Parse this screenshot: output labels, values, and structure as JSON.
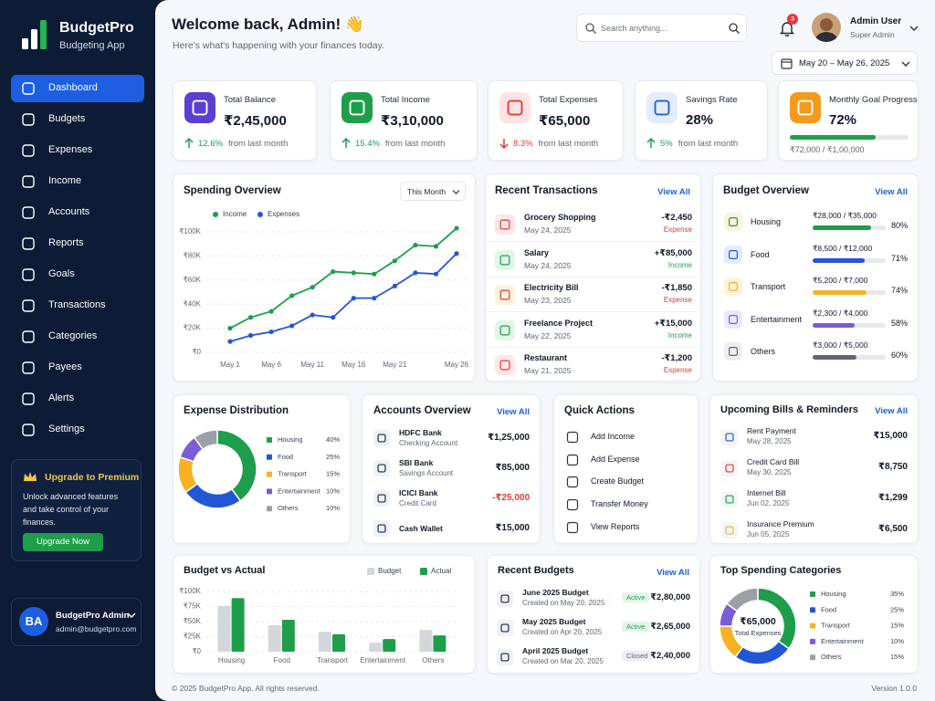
{
  "sidebar": {
    "brand": "BudgetPro",
    "tagline": "Budgeting App",
    "nav": [
      "Dashboard",
      "Budgets",
      "Expenses",
      "Income",
      "Accounts",
      "Reports",
      "Goals",
      "Transactions",
      "Categories",
      "Payees",
      "Alerts",
      "Settings"
    ],
    "active": 0,
    "premium": {
      "title": "Upgrade to Premium",
      "text": "Unlock advanced features and take control of your finances.",
      "button": "Upgrade Now"
    },
    "user": {
      "initials": "BA",
      "name": "BudgetPro Admin",
      "email": "admin@budgetpro.com"
    }
  },
  "header": {
    "title": "Welcome back, Admin! 👋",
    "subtitle": "Here's what's happening with your finances today.",
    "search_placeholder": "Search anything...",
    "notifications": "3",
    "user_name": "Admin User",
    "user_role": "Super Admin",
    "date_range": "May 20 – May 26, 2025"
  },
  "stats": [
    {
      "title": "Total Balance",
      "value": "₹2,45,000",
      "change": "12.6%",
      "direction": "up",
      "note": "from last month",
      "icon_color": "#5b3fd0",
      "icon_fg": "#ffffff"
    },
    {
      "title": "Total Income",
      "value": "₹3,10,000",
      "change": "15.4%",
      "direction": "up",
      "note": "from last month",
      "icon_color": "#1e9e4a",
      "icon_fg": "#ffffff"
    },
    {
      "title": "Total Expenses",
      "value": "₹65,000",
      "change": "8.3%",
      "direction": "down",
      "note": "from last month",
      "icon_color": "#fde3e3",
      "icon_fg": "#e53935"
    },
    {
      "title": "Savings Rate",
      "value": "28%",
      "change": "5%",
      "direction": "up",
      "note": "from last month",
      "icon_color": "#e3ecfd",
      "icon_fg": "#1d5fe0"
    },
    {
      "title": "Monthly Goal Progress",
      "value": "72%",
      "progress": 72,
      "detail": "₹72,000 / ₹1,00,000",
      "icon_color": "#f59a1b",
      "icon_fg": "#ffffff"
    }
  ],
  "transactions": {
    "title": "Recent Transactions",
    "link": "View All",
    "items": [
      {
        "name": "Grocery Shopping",
        "date": "May 24, 2025",
        "amount": "-₹2,450",
        "type": "Expense",
        "color": "#e53935",
        "icon_color": "#fde7e7"
      },
      {
        "name": "Salary",
        "date": "May 24, 2025",
        "amount": "+₹85,000",
        "type": "Income",
        "color": "#1e9e4a",
        "icon_color": "#e2f5e8"
      },
      {
        "name": "Electricity Bill",
        "date": "May 23, 2025",
        "amount": "-₹1,850",
        "type": "Expense",
        "color": "#e53935",
        "icon_color": "#fdf3dc"
      },
      {
        "name": "Freelance Project",
        "date": "May 22, 2025",
        "amount": "+₹15,000",
        "type": "Income",
        "color": "#1e9e4a",
        "icon_color": "#e2f5e8"
      },
      {
        "name": "Restaurant",
        "date": "May 21, 2025",
        "amount": "-₹1,200",
        "type": "Expense",
        "color": "#e53935",
        "icon_color": "#fde7e7"
      }
    ]
  },
  "budget_overview": {
    "title": "Budget Overview",
    "link": "View All",
    "items": [
      {
        "name": "Housing",
        "amount": "₹28,000 / ₹35,000",
        "percent": 80,
        "percent_label": "80%",
        "color": "#1e9e4a",
        "icon_color": "#fdf3dc"
      },
      {
        "name": "Food",
        "amount": "₹8,500 / ₹12,000",
        "percent": 71,
        "percent_label": "71%",
        "color": "#2356d6",
        "icon_color": "#e3ecfd"
      },
      {
        "name": "Transport",
        "amount": "₹5,200 / ₹7,000",
        "percent": 74,
        "percent_label": "74%",
        "color": "#f5b323",
        "icon_color": "#fdf3dc"
      },
      {
        "name": "Entertainment",
        "amount": "₹2,300 / ₹4,000",
        "percent": 58,
        "percent_label": "58%",
        "color": "#7b5bd6",
        "icon_color": "#ede7fb"
      },
      {
        "name": "Others",
        "amount": "₹3,000 / ₹5,000",
        "percent": 60,
        "percent_label": "60%",
        "color": "#5f6673",
        "icon_color": "#eceef2"
      }
    ]
  },
  "accounts": {
    "title": "Accounts Overview",
    "link": "View All",
    "items": [
      {
        "name": "HDFC Bank",
        "kind": "Checking Account",
        "amount": "₹1,25,000",
        "color": "#111827"
      },
      {
        "name": "SBI Bank",
        "kind": "Savings Account",
        "amount": "₹85,000",
        "color": "#111827"
      },
      {
        "name": "ICICI Bank",
        "kind": "Credit Card",
        "amount": "-₹25,000",
        "color": "#e53935"
      },
      {
        "name": "Cash Wallet",
        "amount": "₹15,000",
        "color": "#111827"
      }
    ]
  },
  "quick_actions": {
    "title": "Quick Actions",
    "items": [
      "Add Income",
      "Add Expense",
      "Create Budget",
      "Transfer Money",
      "View Reports"
    ]
  },
  "bills": {
    "title": "Upcoming Bills & Reminders",
    "link": "View All",
    "items": [
      {
        "name": "Rent Payment",
        "date": "May 28, 2025",
        "amount": "₹15,000",
        "icon_color": "#2356d6"
      },
      {
        "name": "Credit Card Bill",
        "date": "May 30, 2025",
        "amount": "₹8,750",
        "icon_color": "#e53935"
      },
      {
        "name": "Internet Bill",
        "date": "Jun 02, 2025",
        "amount": "₹1,299",
        "icon_color": "#1e9e4a"
      },
      {
        "name": "Insurance Premium",
        "date": "Jun 05, 2025",
        "amount": "₹6,500",
        "icon_color": "#f5b323"
      }
    ]
  },
  "recent_budgets": {
    "title": "Recent Budgets",
    "link": "View All",
    "items": [
      {
        "name": "June 2025 Budget",
        "created": "Created on May 20, 2025",
        "status": "Active",
        "status_color": "#1e9e4a",
        "status_bg": "#e2f5e8",
        "amount": "₹2,80,000"
      },
      {
        "name": "May 2025 Budget",
        "created": "Created on Apr 20, 2025",
        "status": "Active",
        "status_color": "#1e9e4a",
        "status_bg": "#e2f5e8",
        "amount": "₹2,65,000"
      },
      {
        "name": "April 2025 Budget",
        "created": "Created on Mar 20, 2025",
        "status": "Closed",
        "status_color": "#5f6673",
        "status_bg": "#eceef2",
        "amount": "₹2,40,000"
      }
    ]
  },
  "footer": {
    "copyright": "© 2025 BudgetPro App. All rights reserved.",
    "version": "Version 1.0.0"
  },
  "chart_data": [
    {
      "type": "line",
      "title": "Spending Overview",
      "filter": "This Month",
      "categories": [
        "May 1",
        null,
        "May 6",
        null,
        "May 11",
        null,
        "May 16",
        null,
        "May 21",
        null,
        null,
        "May 26"
      ],
      "series": [
        {
          "name": "Income",
          "color": "#1e9e4a",
          "values": [
            20000,
            29000,
            34000,
            47000,
            54000,
            67000,
            66000,
            65000,
            76000,
            89000,
            88000,
            103000
          ]
        },
        {
          "name": "Expenses",
          "color": "#2356d6",
          "values": [
            9000,
            14000,
            17000,
            22000,
            31000,
            29000,
            45000,
            45000,
            55000,
            66000,
            65000,
            82000
          ]
        }
      ],
      "ylim": [
        0,
        110000
      ],
      "yticks": [
        {
          "value": 0,
          "label": "₹0"
        },
        {
          "value": 20000,
          "label": "₹20K"
        },
        {
          "value": 40000,
          "label": "₹40K"
        },
        {
          "value": 60000,
          "label": "₹60K"
        },
        {
          "value": 80000,
          "label": "₹80K"
        },
        {
          "value": 100000,
          "label": "₹100K"
        }
      ],
      "grid": true
    },
    {
      "type": "donut",
      "title": "Expense Distribution",
      "categories": [
        "Housing",
        "Food",
        "Transport",
        "Entertainment",
        "Others"
      ],
      "values": [
        40,
        25,
        15,
        10,
        10
      ],
      "value_labels": [
        "40%",
        "25%",
        "15%",
        "10%",
        "10%"
      ],
      "colors": [
        "#1e9e4a",
        "#2356d6",
        "#f5b323",
        "#7b5bd6",
        "#9aa0a6"
      ]
    },
    {
      "type": "bar",
      "title": "Budget vs Actual",
      "categories": [
        "Housing",
        "Food",
        "Transport",
        "Entertainment",
        "Others"
      ],
      "series": [
        {
          "name": "Budget",
          "color": "#d3d6db",
          "values": [
            76000,
            44000,
            33000,
            15000,
            36000
          ]
        },
        {
          "name": "Actual",
          "color": "#1e9e4a",
          "values": [
            89000,
            53000,
            29000,
            21000,
            27000
          ]
        }
      ],
      "ylim": [
        0,
        100000
      ],
      "yticks": [
        {
          "value": 0,
          "label": "₹0"
        },
        {
          "value": 25000,
          "label": "₹25K"
        },
        {
          "value": 50000,
          "label": "₹50K"
        },
        {
          "value": 75000,
          "label": "₹75K"
        },
        {
          "value": 100000,
          "label": "₹100K"
        }
      ],
      "grid": true
    },
    {
      "type": "donut",
      "title": "Top Spending Categories",
      "center_label": "₹65,000",
      "center_sublabel": "Total Expenses",
      "categories": [
        "Housing",
        "Food",
        "Transport",
        "Entertainment",
        "Others"
      ],
      "values": [
        35,
        25,
        15,
        10,
        15
      ],
      "value_labels": [
        "35%",
        "25%",
        "15%",
        "10%",
        "15%"
      ],
      "colors": [
        "#1e9e4a",
        "#2356d6",
        "#f5b323",
        "#7b5bd6",
        "#9aa0a6"
      ]
    }
  ]
}
